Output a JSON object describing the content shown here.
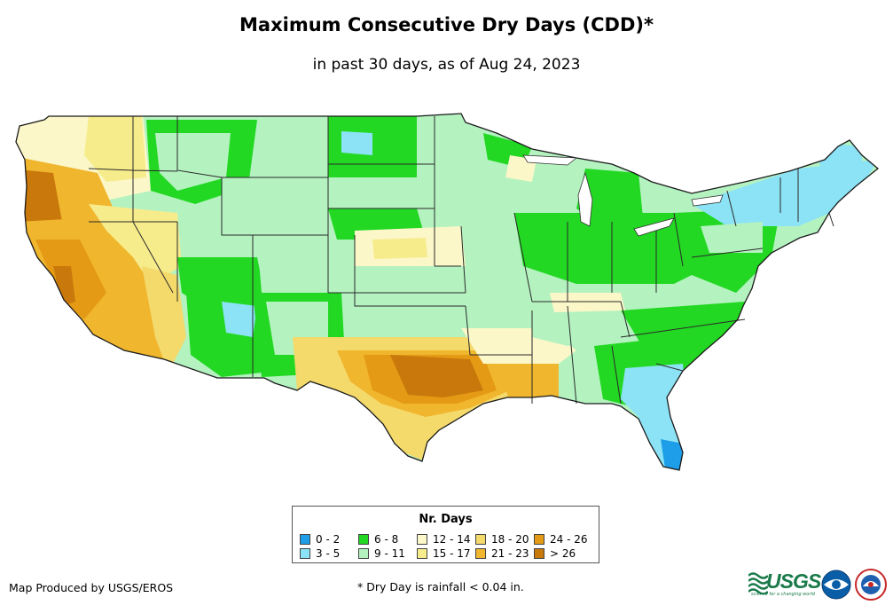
{
  "title": "Maximum Consecutive Dry Days (CDD)*",
  "subtitle": "in past 30 days, as of Aug 24, 2023",
  "legend": {
    "title": "Nr. Days",
    "items": [
      {
        "label": "0 - 2",
        "color": "#1e9ee8"
      },
      {
        "label": "3 - 5",
        "color": "#8ce3f5"
      },
      {
        "label": "6 - 8",
        "color": "#22d822"
      },
      {
        "label": "9 - 11",
        "color": "#b4f2c0"
      },
      {
        "label": "12 - 14",
        "color": "#fbf7c8"
      },
      {
        "label": "15 - 17",
        "color": "#f7ec8c"
      },
      {
        "label": "18 - 20",
        "color": "#f4d96b"
      },
      {
        "label": "21 - 23",
        "color": "#f0b62e"
      },
      {
        "label": "24 - 26",
        "color": "#e49a14"
      },
      {
        "label": "> 26",
        "color": "#c9780c"
      }
    ]
  },
  "credit": "Map Produced by USGS/EROS",
  "footnote": "* Dry Day is rainfall < 0.04 in.",
  "logos": {
    "usgs_text": "USGS",
    "usgs_tagline": "science for a changing world",
    "noaa": "noaa-logo",
    "nws": "nws-logo"
  }
}
